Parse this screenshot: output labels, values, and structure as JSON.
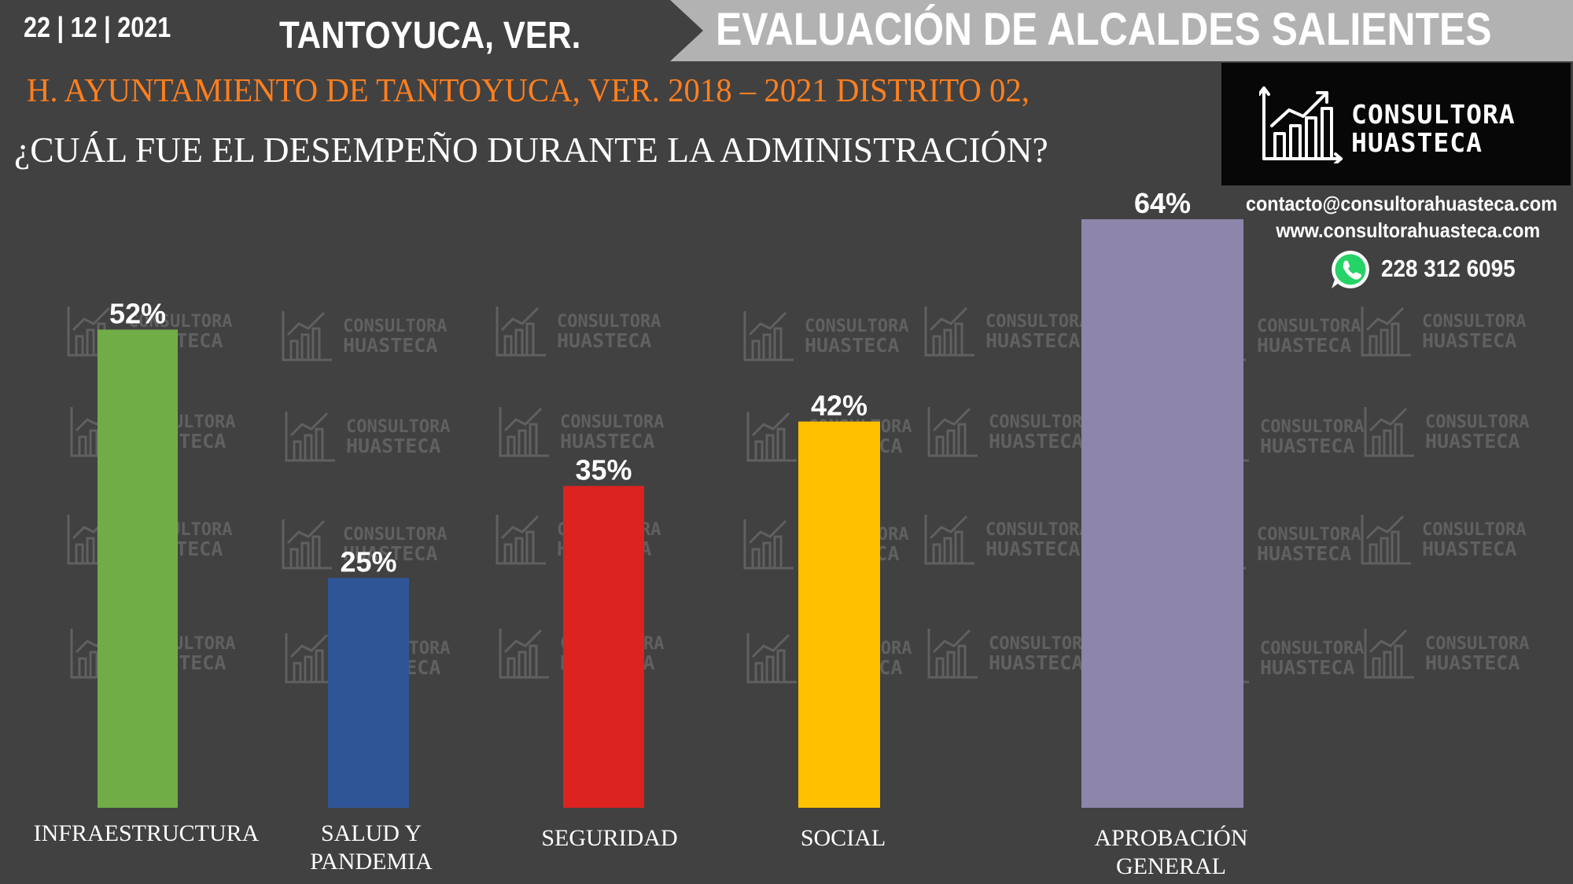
{
  "header": {
    "date": "22 | 12 | 2021",
    "city": "TANTOYUCA, VER.",
    "banner": "EVALUACIÓN DE ALCALDES SALIENTES",
    "subtitle": "H. AYUNTAMIENTO DE TANTOYUCA, VER. 2018 – 2021 DISTRITO 02,",
    "question": "¿CUÁL FUE EL DESEMPEÑO DURANTE LA ADMINISTRACIÓN?"
  },
  "brand": {
    "line1": "CONSULTORA",
    "line2": "HUASTECA",
    "email": "contacto@consultorahuasteca.com",
    "web": "www.consultorahuasteca.com",
    "phone": "228 312 6095",
    "icon": "chart-growth-icon",
    "whatsapp_icon": "whatsapp-icon"
  },
  "chart_data": {
    "type": "bar",
    "categories": [
      "INFRAESTRUCTURA",
      "SALUD Y PANDEMIA",
      "SEGURIDAD",
      "SOCIAL",
      "APROBACIÓN GENERAL"
    ],
    "category_lines": [
      [
        "INFRAESTRUCTURA"
      ],
      [
        "SALUD Y",
        "PANDEMIA"
      ],
      [
        "SEGURIDAD"
      ],
      [
        "SOCIAL"
      ],
      [
        "APROBACIÓN",
        "GENERAL"
      ]
    ],
    "values": [
      52,
      25,
      35,
      42,
      64
    ],
    "value_labels": [
      "52%",
      "25%",
      "35%",
      "42%",
      "64%"
    ],
    "colors": [
      "#70ad47",
      "#2f5597",
      "#dc231f",
      "#ffc000",
      "#8e85ab"
    ],
    "ylim": [
      0,
      64
    ],
    "grid": false,
    "legend": "none"
  }
}
